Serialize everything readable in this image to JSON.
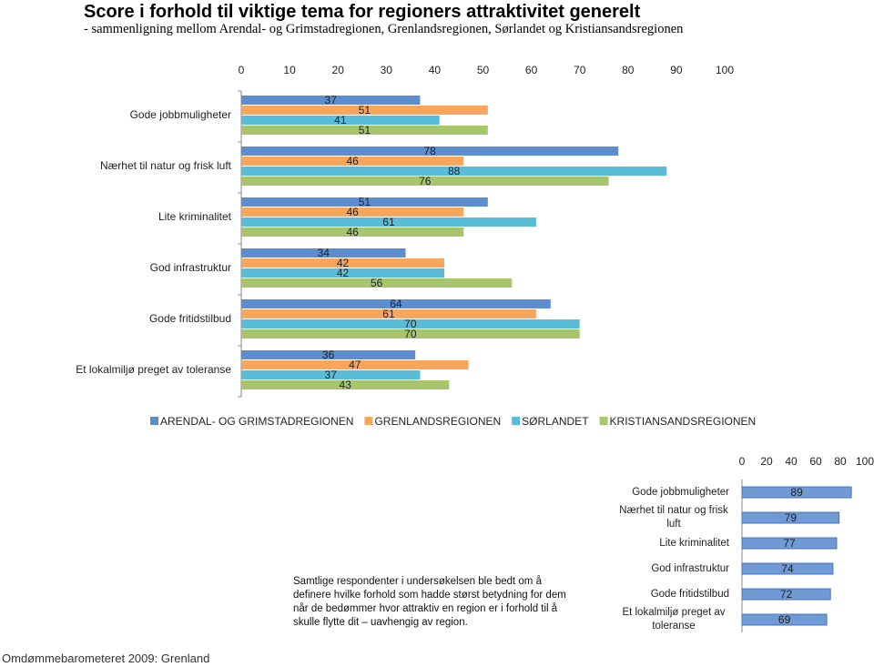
{
  "title": "Score i forhold til viktige tema for regioners attraktivitet generelt",
  "subtitle": "- sammenligning mellom Arendal- og Grimstadregionen, Grenlandsregionen, Sørlandet og Kristiansandsregionen",
  "chart_data": [
    {
      "type": "bar",
      "orientation": "horizontal",
      "categories": [
        "Gode jobbmuligheter",
        "Nærhet til natur og frisk luft",
        "Lite kriminalitet",
        "God infrastruktur",
        "Gode fritidstilbud",
        "Et lokalmiljø preget av toleranse"
      ],
      "series": [
        {
          "name": "ARENDAL- OG GRIMSTADREGIONEN",
          "color": "#5b8dcf",
          "values": [
            37,
            78,
            51,
            34,
            64,
            36
          ]
        },
        {
          "name": "GRENLANDSREGIONEN",
          "color": "#f8a65c",
          "values": [
            51,
            46,
            46,
            42,
            61,
            47
          ]
        },
        {
          "name": "SØRLANDET",
          "color": "#5bbcd7",
          "values": [
            41,
            88,
            61,
            42,
            70,
            37
          ]
        },
        {
          "name": "KRISTIANSANDSREGIONEN",
          "color": "#a7c56b",
          "values": [
            51,
            76,
            46,
            56,
            70,
            43
          ]
        }
      ],
      "xlim": [
        0,
        100
      ],
      "xticks": [
        0,
        10,
        20,
        30,
        40,
        50,
        60,
        70,
        80,
        90,
        100
      ]
    },
    {
      "type": "bar",
      "orientation": "horizontal",
      "categories": [
        "Gode jobbmuligheter",
        "Nærhet til natur og frisk luft",
        "Lite kriminalitet",
        "God infrastruktur",
        "Gode fritidstilbud",
        "Et lokalmiljø preget av toleranse"
      ],
      "values": [
        89,
        79,
        77,
        74,
        72,
        69
      ],
      "color": "#6f9ad6",
      "xlim": [
        0,
        100
      ],
      "xticks": [
        0,
        20,
        40,
        60,
        80,
        100
      ]
    }
  ],
  "note": "Samtlige respondenter i undersøkelsen ble bedt om å definere hvilke forhold som hadde størst betydning for dem når de bedømmer hvor attraktiv en region er i forhold til å skulle flytte dit – uavhengig av region.",
  "footer": "Omdømmebarometeret 2009: Grenland"
}
